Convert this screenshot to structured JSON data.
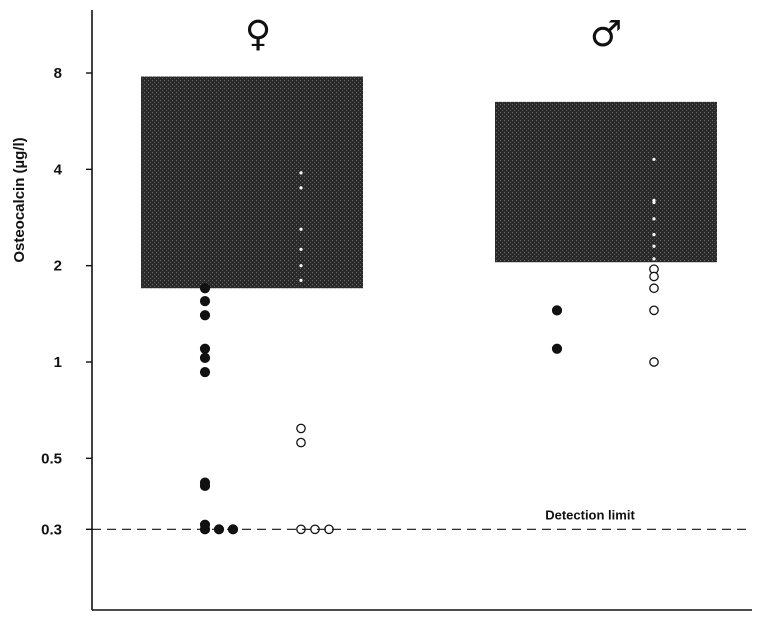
{
  "chart_data": {
    "type": "scatter",
    "y_scale": "log",
    "ylabel": "Osteocalcin (µg/l)",
    "ylim": [
      0.2,
      12
    ],
    "yticks": [
      0.3,
      0.5,
      1,
      2,
      4,
      8
    ],
    "ytick_labels": [
      "0.3",
      "0.5",
      "1",
      "2",
      "4",
      "8"
    ],
    "groups": [
      {
        "symbol": "♀",
        "box_range": [
          1.7,
          7.8
        ]
      },
      {
        "symbol": "♂",
        "box_range": [
          2.05,
          6.5
        ]
      }
    ],
    "series": [
      {
        "marker": "filled",
        "group": 0,
        "sub_x": 0,
        "values": [
          1.7,
          1.55,
          1.4,
          1.1,
          1.03,
          0.93,
          0.42,
          0.41,
          0.31,
          0.3,
          0.3,
          0.3
        ]
      },
      {
        "marker": "open",
        "group": 0,
        "sub_x": 1,
        "values": [
          3.9,
          3.5,
          2.6,
          2.25,
          2.0,
          1.8,
          0.62,
          0.56,
          0.3,
          0.3,
          0.3
        ]
      },
      {
        "marker": "filled",
        "group": 1,
        "sub_x": 0,
        "values": [
          1.45,
          1.1
        ]
      },
      {
        "marker": "open",
        "group": 1,
        "sub_x": 1,
        "values": [
          4.3,
          3.2,
          3.15,
          2.8,
          2.5,
          2.3,
          2.1,
          1.95,
          1.85,
          1.7,
          1.45,
          1.0
        ]
      }
    ],
    "reference_line": {
      "value": 0.3,
      "label": "Detection limit"
    }
  }
}
